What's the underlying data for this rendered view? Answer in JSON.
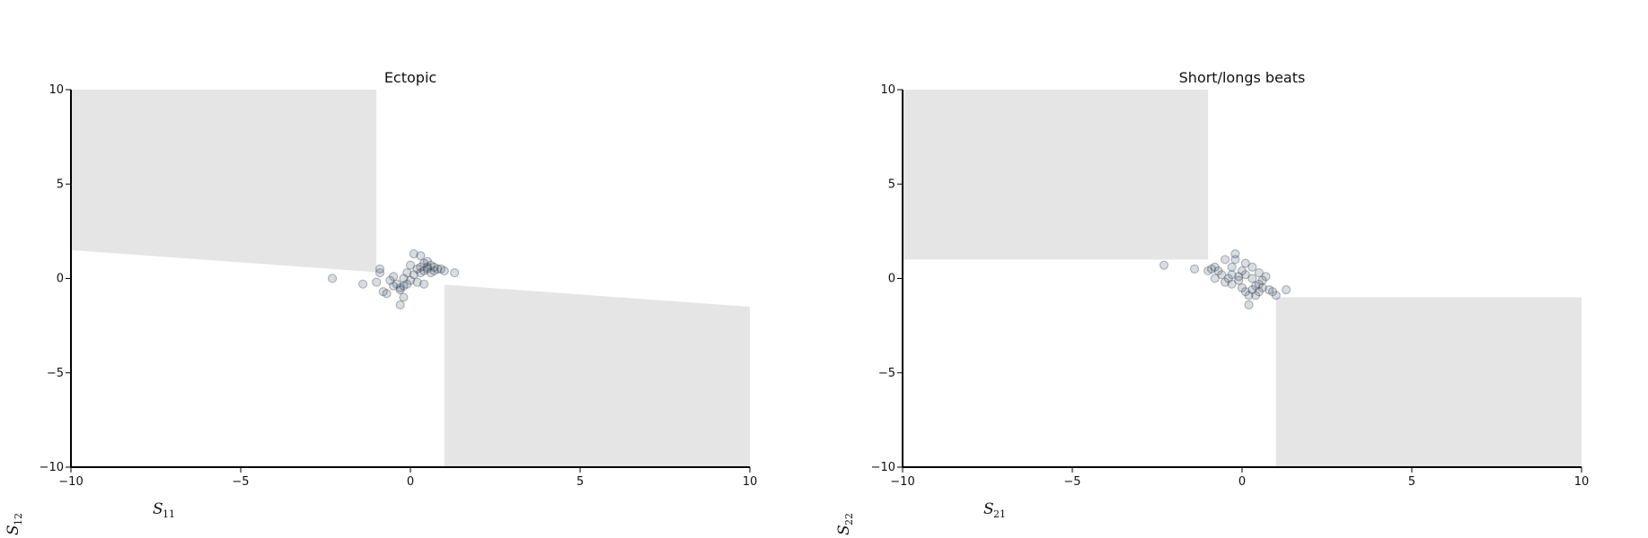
{
  "chart_data": [
    {
      "type": "scatter",
      "title": "Ectopic",
      "xlabel": "S",
      "xlabel_sub": "11",
      "ylabel": "S",
      "ylabel_sub": "12",
      "xlim": [
        -10,
        10
      ],
      "ylim": [
        -10,
        10
      ],
      "xticks": [
        -10,
        -5,
        0,
        5,
        10
      ],
      "yticks": [
        -10,
        -5,
        0,
        5,
        10
      ],
      "xtick_labels": [
        "−10",
        "−5",
        "0",
        "5",
        "10"
      ],
      "ytick_labels": [
        "−10",
        "−5",
        "0",
        "5",
        "10"
      ],
      "grid": false,
      "region_color": "#e5e5e5",
      "point_color": "#334155",
      "regions": [
        [
          [
            -10,
            10
          ],
          [
            -1.0,
            10
          ],
          [
            -1.0,
            0.33
          ],
          [
            -10,
            1.5
          ]
        ],
        [
          [
            1.0,
            -0.33
          ],
          [
            10,
            -1.5
          ],
          [
            10,
            -10
          ],
          [
            1.0,
            -10
          ]
        ]
      ],
      "points": [
        [
          -2.3,
          0.0
        ],
        [
          -1.4,
          -0.3
        ],
        [
          -1.0,
          -0.2
        ],
        [
          -0.9,
          0.3
        ],
        [
          -0.9,
          0.5
        ],
        [
          -0.8,
          -0.7
        ],
        [
          -0.7,
          -0.8
        ],
        [
          -0.6,
          -0.1
        ],
        [
          -0.5,
          0.1
        ],
        [
          -0.5,
          -0.4
        ],
        [
          -0.4,
          -0.3
        ],
        [
          -0.3,
          -0.6
        ],
        [
          -0.3,
          -0.5
        ],
        [
          -0.2,
          -0.4
        ],
        [
          -0.2,
          0.0
        ],
        [
          -0.2,
          -1.0
        ],
        [
          -0.3,
          -1.4
        ],
        [
          -0.1,
          -0.3
        ],
        [
          -0.1,
          0.3
        ],
        [
          0.0,
          -0.1
        ],
        [
          0.0,
          0.7
        ],
        [
          0.1,
          0.2
        ],
        [
          0.1,
          1.3
        ],
        [
          0.2,
          -0.2
        ],
        [
          0.2,
          0.5
        ],
        [
          0.3,
          0.3
        ],
        [
          0.3,
          1.2
        ],
        [
          0.3,
          0.6
        ],
        [
          0.4,
          0.8
        ],
        [
          0.4,
          0.4
        ],
        [
          0.4,
          -0.3
        ],
        [
          0.5,
          0.5
        ],
        [
          0.5,
          0.9
        ],
        [
          0.5,
          0.6
        ],
        [
          0.6,
          0.3
        ],
        [
          0.6,
          0.7
        ],
        [
          0.7,
          0.4
        ],
        [
          0.7,
          0.6
        ],
        [
          0.8,
          0.5
        ],
        [
          0.9,
          0.5
        ],
        [
          1.0,
          0.4
        ],
        [
          1.3,
          0.3
        ]
      ]
    },
    {
      "type": "scatter",
      "title": "Short/longs beats",
      "xlabel": "S",
      "xlabel_sub": "21",
      "ylabel": "S",
      "ylabel_sub": "22",
      "xlim": [
        -10,
        10
      ],
      "ylim": [
        -10,
        10
      ],
      "xticks": [
        -10,
        -5,
        0,
        5,
        10
      ],
      "yticks": [
        -10,
        -5,
        0,
        5,
        10
      ],
      "xtick_labels": [
        "−10",
        "−5",
        "0",
        "5",
        "10"
      ],
      "ytick_labels": [
        "−10",
        "−5",
        "0",
        "5",
        "10"
      ],
      "grid": false,
      "region_color": "#e5e5e5",
      "point_color": "#334155",
      "regions": [
        [
          [
            -10,
            10
          ],
          [
            -1.0,
            10
          ],
          [
            -1.0,
            1.0
          ],
          [
            -10,
            1.0
          ]
        ],
        [
          [
            1.0,
            -1.0
          ],
          [
            10,
            -1.0
          ],
          [
            10,
            -10
          ],
          [
            1.0,
            -10
          ]
        ]
      ],
      "points": [
        [
          -2.3,
          0.7
        ],
        [
          -1.4,
          0.5
        ],
        [
          -1.0,
          0.4
        ],
        [
          -0.9,
          0.5
        ],
        [
          -0.8,
          0.6
        ],
        [
          -0.8,
          0.0
        ],
        [
          -0.7,
          0.4
        ],
        [
          -0.6,
          0.2
        ],
        [
          -0.5,
          -0.2
        ],
        [
          -0.5,
          1.0
        ],
        [
          -0.4,
          0.0
        ],
        [
          -0.3,
          0.2
        ],
        [
          -0.3,
          0.6
        ],
        [
          -0.3,
          -0.3
        ],
        [
          -0.2,
          1.3
        ],
        [
          -0.2,
          1.0
        ],
        [
          -0.1,
          0.1
        ],
        [
          -0.1,
          -0.1
        ],
        [
          0.0,
          -0.5
        ],
        [
          0.0,
          0.4
        ],
        [
          0.1,
          -0.7
        ],
        [
          0.1,
          0.8
        ],
        [
          0.1,
          0.2
        ],
        [
          0.2,
          -1.4
        ],
        [
          0.2,
          -0.9
        ],
        [
          0.3,
          0.6
        ],
        [
          0.3,
          -0.6
        ],
        [
          0.3,
          0.0
        ],
        [
          0.4,
          -0.4
        ],
        [
          0.4,
          -0.9
        ],
        [
          0.5,
          -0.3
        ],
        [
          0.5,
          0.3
        ],
        [
          0.5,
          -0.7
        ],
        [
          0.6,
          -0.1
        ],
        [
          0.6,
          -0.5
        ],
        [
          0.7,
          0.1
        ],
        [
          0.8,
          -0.6
        ],
        [
          0.9,
          -0.7
        ],
        [
          1.0,
          -0.9
        ],
        [
          1.3,
          -0.6
        ]
      ]
    }
  ]
}
